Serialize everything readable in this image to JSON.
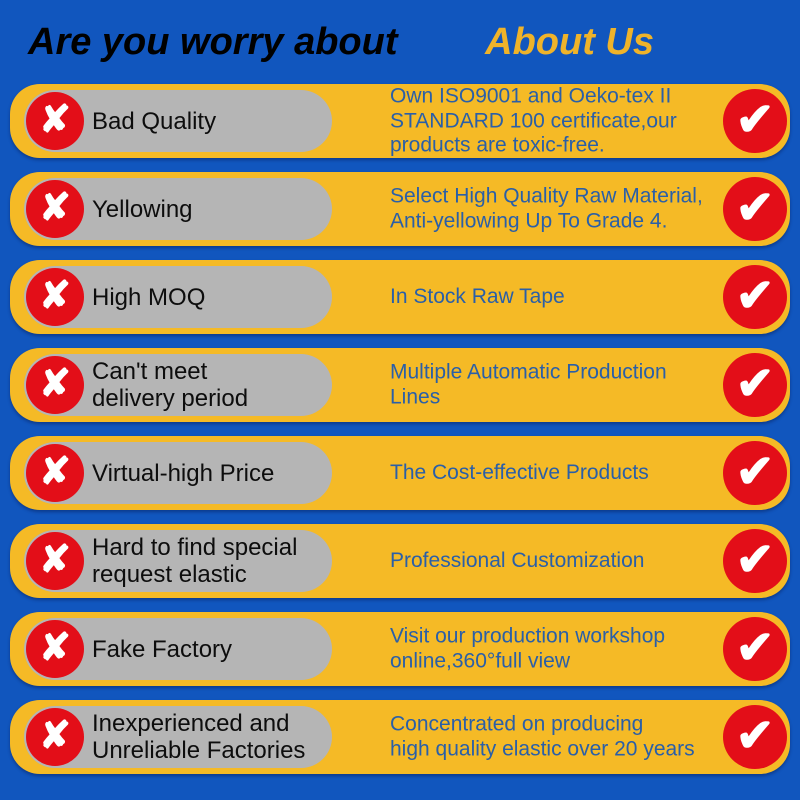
{
  "header": {
    "left_title": "Are you worry about",
    "right_title": "About Us"
  },
  "rows": [
    {
      "problem": "Bad Quality",
      "solution": "Own ISO9001 and Oeko-tex II\nSTANDARD 100 certificate,our\nproducts are toxic-free."
    },
    {
      "problem": "Yellowing",
      "solution": "Select High Quality Raw Material,\nAnti-yellowing Up To Grade 4."
    },
    {
      "problem": "High MOQ",
      "solution": "In Stock Raw Tape"
    },
    {
      "problem": "Can't meet\ndelivery period",
      "solution": "Multiple Automatic Production\nLines"
    },
    {
      "problem": "Virtual-high Price",
      "solution": "The Cost-effective Products"
    },
    {
      "problem": "Hard to find special\nrequest elastic",
      "solution": "Professional Customization"
    },
    {
      "problem": "Fake Factory",
      "solution": "Visit our production workshop\nonline,360°full view"
    },
    {
      "problem": "Inexperienced and\nUnreliable Factories",
      "solution": "Concentrated on producing\nhigh quality elastic over 20 years"
    }
  ],
  "icons": {
    "cross_glyph": "✘",
    "check_glyph": "✔"
  },
  "colors": {
    "background_blue": "#1156BE",
    "pill_yellow": "#F5BA26",
    "pill_gray": "#B5B5B5",
    "icon_red": "#E30E18",
    "solution_text_blue": "#2A5FA8",
    "header_right_yellow": "#EFB32A",
    "problem_text_black": "#0D0D0D",
    "icon_glyph_white": "#FFFFFF"
  }
}
